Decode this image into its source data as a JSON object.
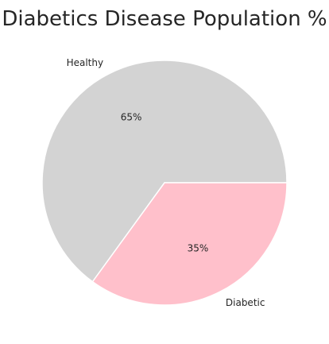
{
  "chart_data": {
    "type": "pie",
    "title": "Diabetics Disease Population %",
    "categories": [
      "Healthy",
      "Diabetic"
    ],
    "values": [
      65,
      35
    ],
    "percent_labels": [
      "65%",
      "35%"
    ],
    "colors": [
      "#d3d3d3",
      "#ffc0cb"
    ],
    "edge_color": "#ffffff",
    "legend": "none"
  }
}
